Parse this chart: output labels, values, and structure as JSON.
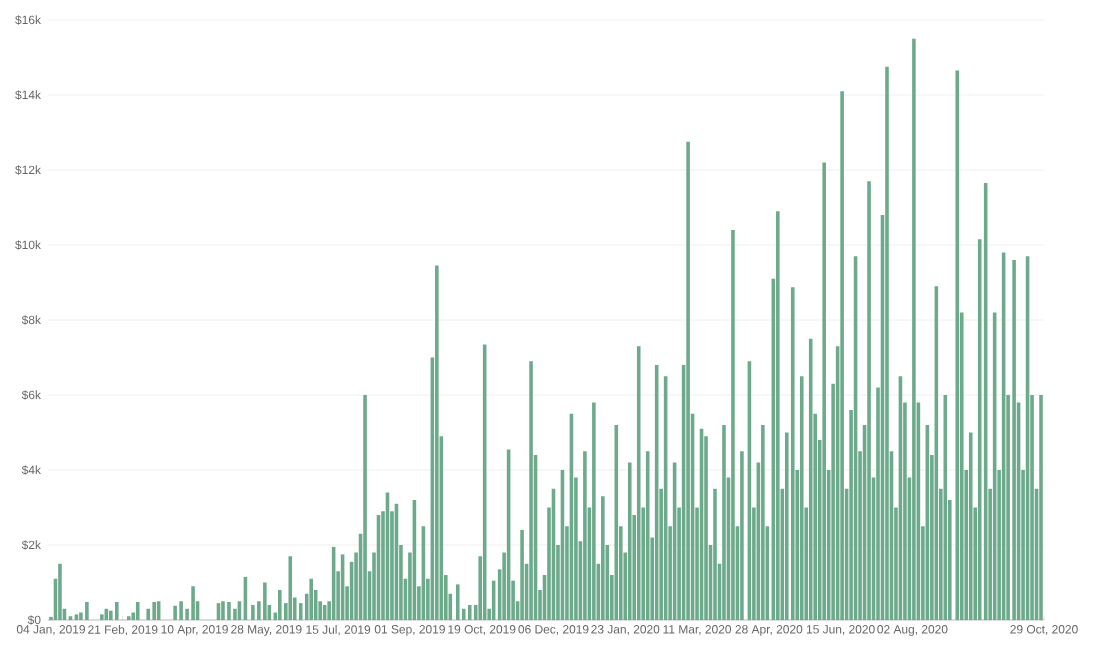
{
  "chart_data": {
    "type": "bar",
    "color": "#6daa8c",
    "grid": "y",
    "xlim": [
      "2019-01-02",
      "2020-10-29"
    ],
    "ylim": [
      0,
      16000
    ],
    "xticks": [
      {
        "value": "2019-01-04",
        "label": "04 Jan, 2019"
      },
      {
        "value": "2019-02-21",
        "label": "21 Feb, 2019"
      },
      {
        "value": "2019-04-10",
        "label": "10 Apr, 2019"
      },
      {
        "value": "2019-05-28",
        "label": "28 May, 2019"
      },
      {
        "value": "2019-07-15",
        "label": "15 Jul, 2019"
      },
      {
        "value": "2019-09-01",
        "label": "01 Sep, 2019"
      },
      {
        "value": "2019-10-19",
        "label": "19 Oct, 2019"
      },
      {
        "value": "2019-12-06",
        "label": "06 Dec, 2019"
      },
      {
        "value": "2020-01-23",
        "label": "23 Jan, 2020"
      },
      {
        "value": "2020-03-11",
        "label": "11 Mar, 2020"
      },
      {
        "value": "2020-04-28",
        "label": "28 Apr, 2020"
      },
      {
        "value": "2020-06-15",
        "label": "15 Jun, 2020"
      },
      {
        "value": "2020-08-02",
        "label": "02 Aug, 2020"
      },
      {
        "value": "2020-10-29",
        "label": "29 Oct, 2020"
      }
    ],
    "yticks": [
      {
        "value": 0,
        "label": "$0"
      },
      {
        "value": 2000,
        "label": "$2k"
      },
      {
        "value": 4000,
        "label": "$4k"
      },
      {
        "value": 6000,
        "label": "$6k"
      },
      {
        "value": 8000,
        "label": "$8k"
      },
      {
        "value": 10000,
        "label": "$10k"
      },
      {
        "value": 12000,
        "label": "$12k"
      },
      {
        "value": 14000,
        "label": "$14k"
      },
      {
        "value": 16000,
        "label": "$16k"
      }
    ],
    "x": [
      "2019-01-04",
      "2019-01-07",
      "2019-01-10",
      "2019-01-13",
      "2019-01-17",
      "2019-01-21",
      "2019-01-24",
      "2019-01-28",
      "2019-02-07",
      "2019-02-10",
      "2019-02-13",
      "2019-02-17",
      "2019-02-25",
      "2019-02-28",
      "2019-03-03",
      "2019-03-10",
      "2019-03-14",
      "2019-03-17",
      "2019-03-28",
      "2019-04-01",
      "2019-04-05",
      "2019-04-09",
      "2019-04-12",
      "2019-04-26",
      "2019-04-29",
      "2019-05-03",
      "2019-05-07",
      "2019-05-10",
      "2019-05-14",
      "2019-05-19",
      "2019-05-23",
      "2019-05-27",
      "2019-05-30",
      "2019-06-03",
      "2019-06-06",
      "2019-06-10",
      "2019-06-13",
      "2019-06-16",
      "2019-06-20",
      "2019-06-24",
      "2019-06-27",
      "2019-06-30",
      "2019-07-03",
      "2019-07-06",
      "2019-07-09",
      "2019-07-12",
      "2019-07-15",
      "2019-07-18",
      "2019-07-21",
      "2019-07-24",
      "2019-07-27",
      "2019-07-30",
      "2019-08-02",
      "2019-08-05",
      "2019-08-08",
      "2019-08-11",
      "2019-08-14",
      "2019-08-17",
      "2019-08-20",
      "2019-08-23",
      "2019-08-26",
      "2019-08-29",
      "2019-09-01",
      "2019-09-04",
      "2019-09-07",
      "2019-09-10",
      "2019-09-13",
      "2019-09-16",
      "2019-09-19",
      "2019-09-22",
      "2019-09-25",
      "2019-09-28",
      "2019-10-03",
      "2019-10-07",
      "2019-10-11",
      "2019-10-15",
      "2019-10-18",
      "2019-10-21",
      "2019-10-24",
      "2019-10-27",
      "2019-10-31",
      "2019-11-03",
      "2019-11-06",
      "2019-11-09",
      "2019-11-12",
      "2019-11-15",
      "2019-11-18",
      "2019-11-21",
      "2019-11-24",
      "2019-11-27",
      "2019-11-30",
      "2019-12-03",
      "2019-12-06",
      "2019-12-09",
      "2019-12-12",
      "2019-12-15",
      "2019-12-18",
      "2019-12-21",
      "2019-12-24",
      "2019-12-27",
      "2019-12-30",
      "2020-01-02",
      "2020-01-05",
      "2020-01-08",
      "2020-01-11",
      "2020-01-14",
      "2020-01-17",
      "2020-01-20",
      "2020-01-23",
      "2020-01-26",
      "2020-01-29",
      "2020-02-01",
      "2020-02-04",
      "2020-02-07",
      "2020-02-10",
      "2020-02-13",
      "2020-02-16",
      "2020-02-19",
      "2020-02-22",
      "2020-02-25",
      "2020-02-28",
      "2020-03-02",
      "2020-03-05",
      "2020-03-08",
      "2020-03-11",
      "2020-03-14",
      "2020-03-17",
      "2020-03-20",
      "2020-03-23",
      "2020-03-26",
      "2020-03-29",
      "2020-04-01",
      "2020-04-04",
      "2020-04-07",
      "2020-04-10",
      "2020-04-15",
      "2020-04-18",
      "2020-04-21",
      "2020-04-24",
      "2020-04-27",
      "2020-05-01",
      "2020-05-04",
      "2020-05-07",
      "2020-05-10",
      "2020-05-14",
      "2020-05-17",
      "2020-05-20",
      "2020-05-23",
      "2020-05-26",
      "2020-05-29",
      "2020-06-01",
      "2020-06-04",
      "2020-06-07",
      "2020-06-10",
      "2020-06-13",
      "2020-06-16",
      "2020-06-19",
      "2020-06-22",
      "2020-06-25",
      "2020-06-28",
      "2020-07-01",
      "2020-07-04",
      "2020-07-07",
      "2020-07-10",
      "2020-07-13",
      "2020-07-16",
      "2020-07-19",
      "2020-07-22",
      "2020-07-25",
      "2020-07-28",
      "2020-07-31",
      "2020-08-03",
      "2020-08-06",
      "2020-08-09",
      "2020-08-12",
      "2020-08-15",
      "2020-08-18",
      "2020-08-21",
      "2020-08-24",
      "2020-08-27",
      "2020-09-01",
      "2020-09-04",
      "2020-09-07",
      "2020-09-10",
      "2020-09-13",
      "2020-09-16",
      "2020-09-20",
      "2020-09-23",
      "2020-09-26",
      "2020-09-29",
      "2020-10-02",
      "2020-10-05",
      "2020-10-09",
      "2020-10-12",
      "2020-10-15",
      "2020-10-18",
      "2020-10-21",
      "2020-10-24",
      "2020-10-27"
    ],
    "values": [
      80,
      1100,
      1500,
      300,
      100,
      150,
      200,
      480,
      150,
      300,
      250,
      480,
      100,
      200,
      480,
      300,
      480,
      500,
      380,
      500,
      300,
      900,
      500,
      450,
      500,
      480,
      300,
      500,
      1150,
      400,
      500,
      1000,
      400,
      200,
      800,
      450,
      1700,
      600,
      450,
      700,
      1100,
      800,
      500,
      400,
      500,
      1950,
      1300,
      1750,
      900,
      1550,
      1800,
      2300,
      6000,
      1300,
      1800,
      2800,
      2900,
      3400,
      2900,
      3100,
      2000,
      1100,
      1800,
      3200,
      900,
      2500,
      1100,
      7000,
      9450,
      4900,
      1200,
      700,
      950,
      300,
      400,
      400,
      1700,
      7350,
      300,
      1050,
      1350,
      1800,
      4550,
      1050,
      500,
      2400,
      1500,
      6900,
      4400,
      800,
      1200,
      3000,
      3500,
      2000,
      4000,
      2500,
      5500,
      3800,
      2100,
      4500,
      3000,
      5800,
      1500,
      3300,
      2000,
      1200,
      5200,
      2500,
      1800,
      4200,
      2800,
      7300,
      3000,
      4500,
      2200,
      6800,
      3500,
      6500,
      2500,
      4200,
      3000,
      6800,
      12750,
      5500,
      3000,
      5100,
      4900,
      2000,
      3500,
      1500,
      5200,
      3800,
      10400,
      2500,
      4500,
      6900,
      3000,
      4200,
      5200,
      2500,
      9100,
      10900,
      3500,
      5000,
      8870,
      4000,
      6500,
      3000,
      7500,
      5500,
      4800,
      12200,
      4000,
      6300,
      7300,
      14100,
      3500,
      5600,
      9700,
      4500,
      5200,
      11700,
      3800,
      6200,
      10800,
      14750,
      4500,
      3000,
      6500,
      5800,
      3800,
      15500,
      5800,
      2500,
      5200,
      4400,
      8900,
      3500,
      6000,
      3200,
      14650,
      8200,
      4000,
      5000,
      3000,
      10150,
      11650,
      3500,
      8200,
      4000,
      9800,
      6000,
      9600,
      5800,
      4000,
      9700,
      6000,
      3500,
      6000
    ]
  }
}
